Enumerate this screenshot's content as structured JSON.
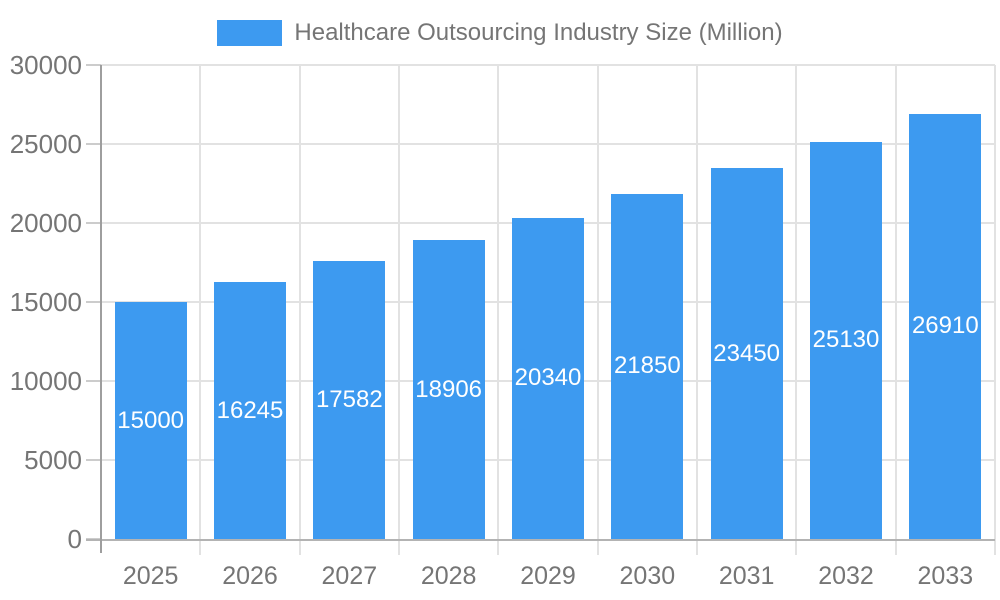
{
  "legend": {
    "series_label": "Healthcare Outsourcing Industry Size (Million)"
  },
  "chart_data": {
    "type": "bar",
    "title": "Healthcare Outsourcing Industry Size (Million)",
    "categories": [
      "2025",
      "2026",
      "2027",
      "2028",
      "2029",
      "2030",
      "2031",
      "2032",
      "2033"
    ],
    "values": [
      15000,
      16245,
      17582,
      18906,
      20340,
      21850,
      23450,
      25130,
      26910
    ],
    "xlabel": "",
    "ylabel": "",
    "ylim": [
      0,
      30000
    ],
    "yticks": [
      0,
      5000,
      10000,
      15000,
      20000,
      25000,
      30000
    ],
    "grid": true,
    "legend_position": "top",
    "colors": {
      "bar": "#3D9AF0",
      "value_label": "#FFFFFF",
      "axis_label": "#757575",
      "gridline": "#E2E2E2",
      "tick": "#CCCCCC",
      "axis_line": "#9E9E9E",
      "baseline": "#B3B3B3",
      "background": "#FFFFFF"
    }
  }
}
